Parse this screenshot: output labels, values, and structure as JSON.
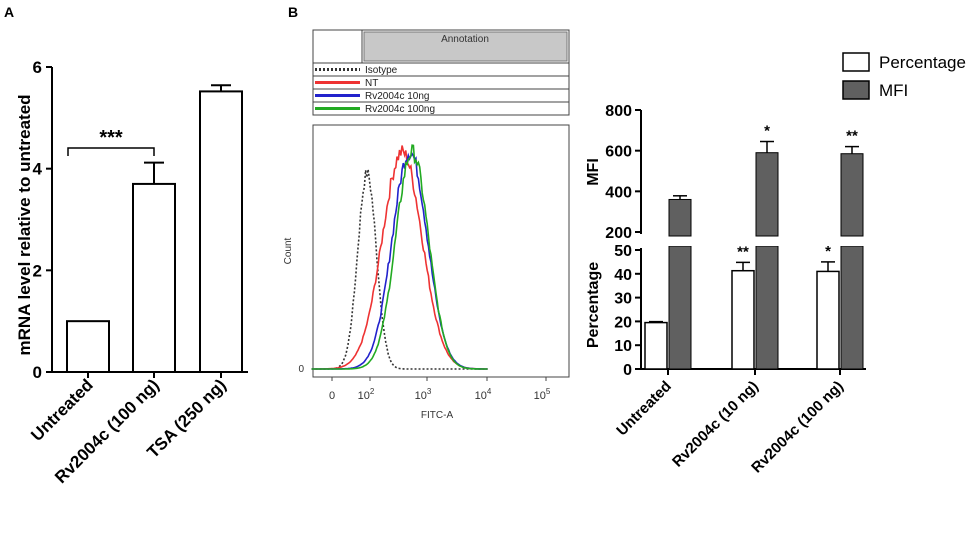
{
  "panel_labels": {
    "a": "A",
    "b": "B"
  },
  "chart_data": [
    {
      "type": "bar",
      "panel": "A",
      "ylabel": "mRNA level relative to untreated",
      "categories": [
        "Untreated",
        "Rv2004c (100 ng)",
        "TSA (250 ng)"
      ],
      "values": [
        1.0,
        3.7,
        5.52
      ],
      "errors": [
        0,
        0.42,
        0.12
      ],
      "ylim": [
        0,
        6
      ],
      "yticks": [
        0,
        2,
        4,
        6
      ],
      "significance": {
        "label": "***",
        "from": 0,
        "to": 1
      }
    },
    {
      "type": "line",
      "panel": "B-histogram",
      "xlabel": "FITC-A",
      "ylabel": "Count",
      "xticks": [
        "0",
        "10^2",
        "10^3",
        "10^4",
        "10^5"
      ],
      "yticks": [
        "0"
      ],
      "annotation_header": "Annotation",
      "series": [
        {
          "name": "Isotype",
          "color": "#333333",
          "style": "dotted",
          "center": 1.95,
          "width": 0.16
        },
        {
          "name": "NT",
          "color": "#ee3333",
          "style": "solid",
          "center": 2.55,
          "width": 0.34
        },
        {
          "name": "Rv2004c  10ng",
          "color": "#2222cc",
          "style": "solid",
          "center": 2.68,
          "width": 0.3
        },
        {
          "name": "Rv2004c  100ng",
          "color": "#22aa22",
          "style": "solid",
          "center": 2.72,
          "width": 0.28
        }
      ]
    },
    {
      "type": "bar",
      "panel": "B-bars",
      "categories": [
        "Untreated",
        "Rv2004c (10 ng)",
        "Rv2004c (100 ng)"
      ],
      "legend": [
        {
          "name": "Percentage",
          "color": "#ffffff"
        },
        {
          "name": "MFI",
          "color": "#606060"
        }
      ],
      "mfi": {
        "ylabel": "MFI",
        "ylim": [
          200,
          800
        ],
        "yticks": [
          200,
          400,
          600,
          800
        ],
        "values": [
          360,
          590,
          585
        ],
        "errors": [
          18,
          55,
          35
        ],
        "stars": [
          "",
          "*",
          "**"
        ]
      },
      "percentage": {
        "ylabel": "Percentage",
        "ylim": [
          0,
          50
        ],
        "yticks": [
          0,
          10,
          20,
          30,
          40,
          50
        ],
        "values": [
          19.5,
          41.3,
          41.0
        ],
        "errors": [
          0.4,
          3.5,
          4.0
        ],
        "stars": [
          "",
          "**",
          "*"
        ]
      }
    }
  ]
}
